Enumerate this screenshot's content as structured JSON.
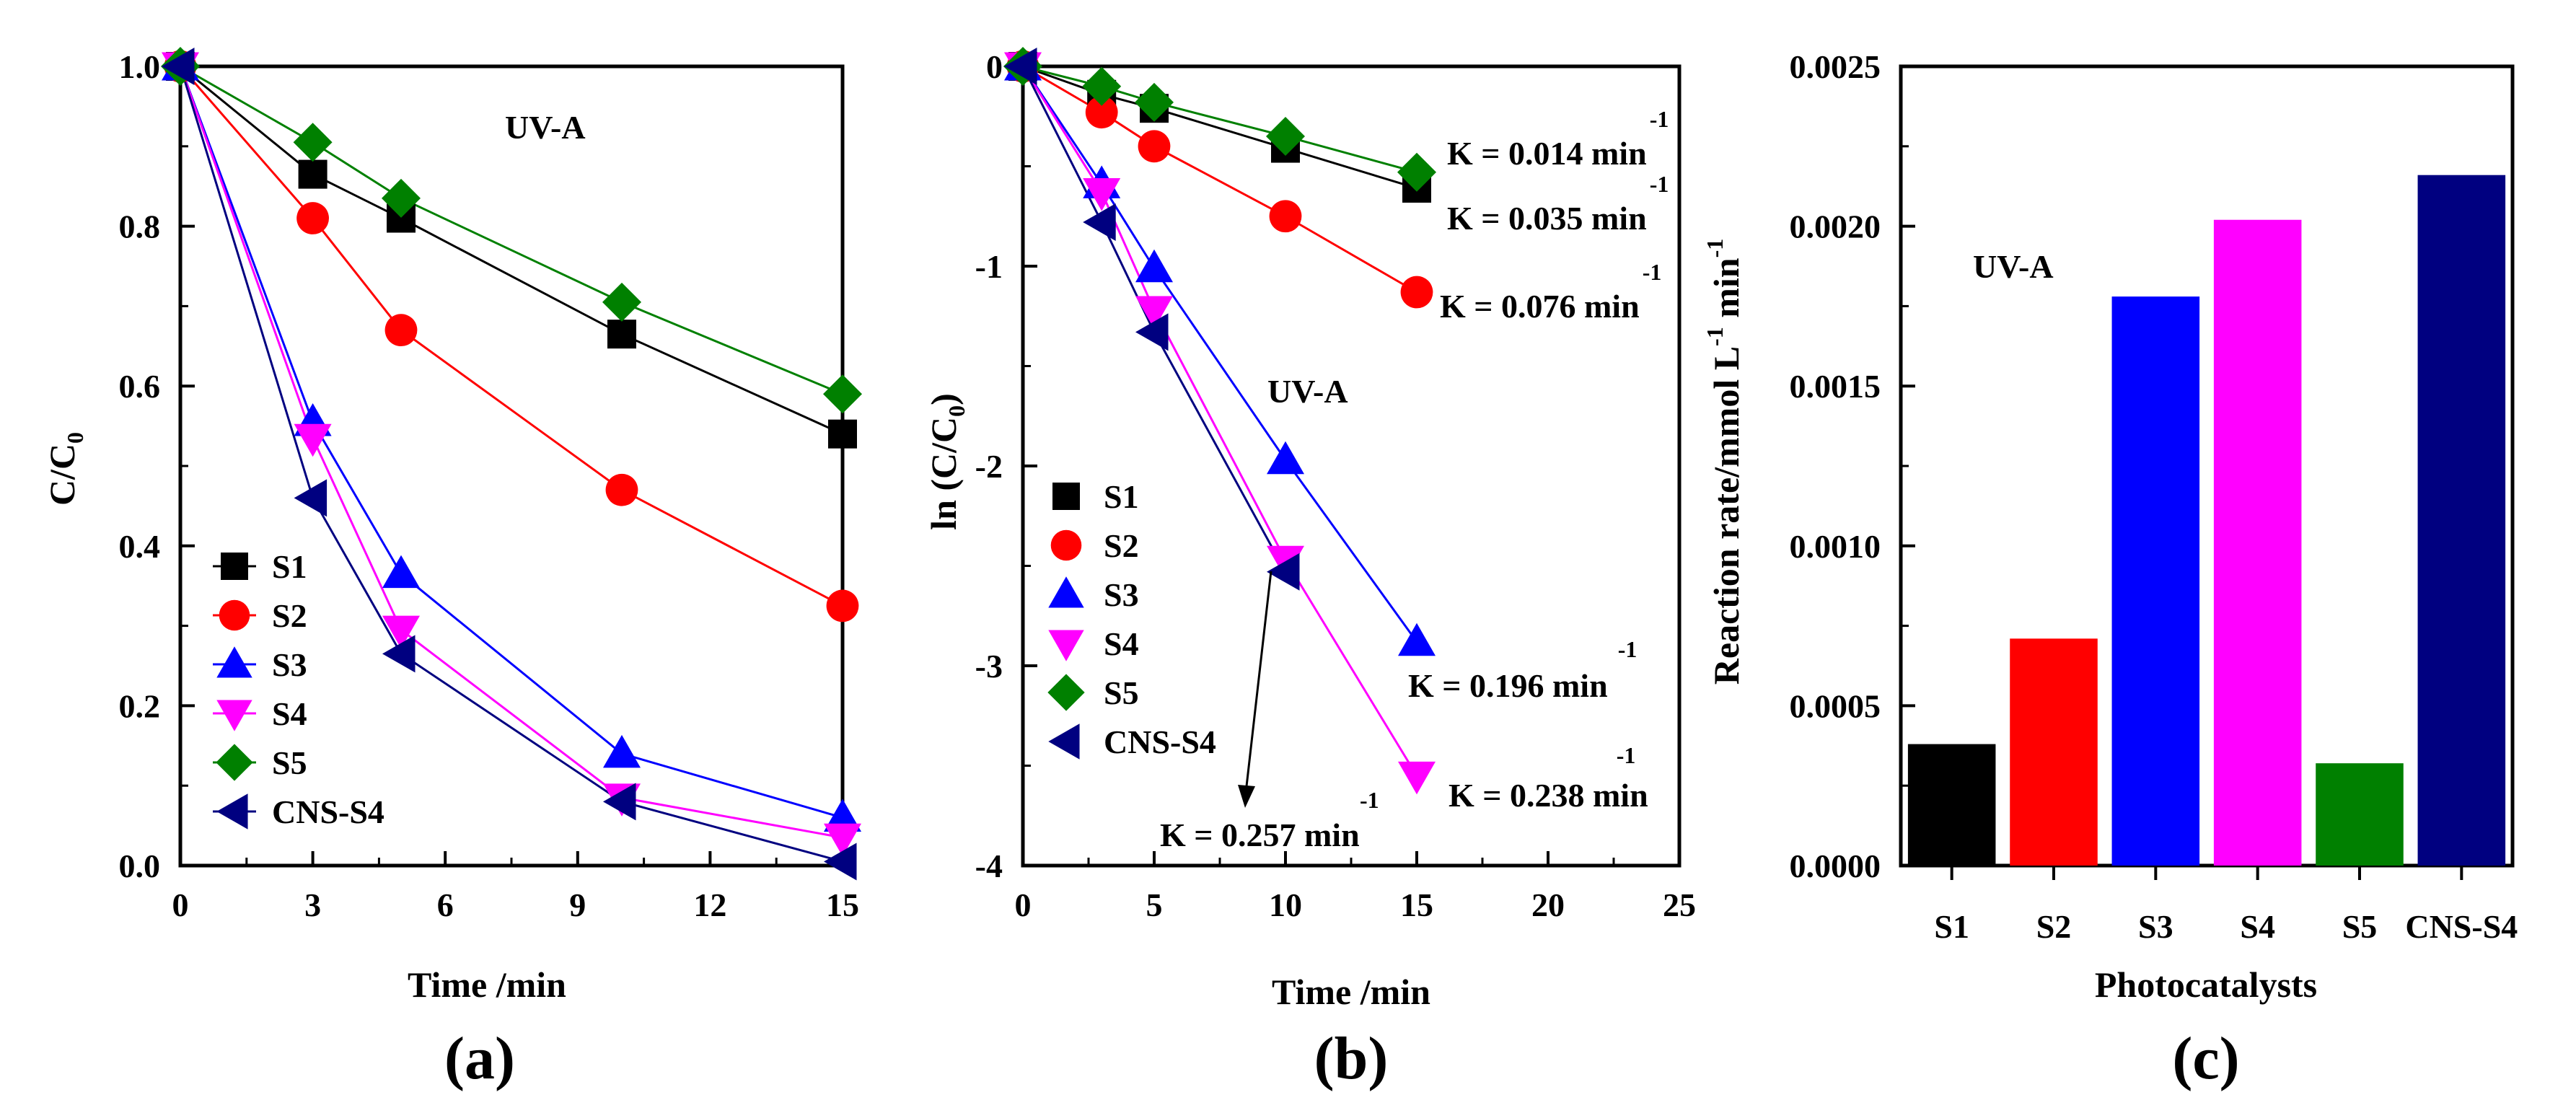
{
  "chart_data": [
    {
      "id": "a",
      "type": "line",
      "panel_label": "(a)",
      "xlabel": "Time /min",
      "ylabel": "C/C",
      "ylabel_sub": "0",
      "xlim": [
        0,
        15
      ],
      "ylim": [
        0,
        1.0
      ],
      "xticks": [
        0,
        3,
        6,
        9,
        12,
        15
      ],
      "yticks": [
        0.0,
        0.2,
        0.4,
        0.6,
        0.8,
        1.0
      ],
      "xtick_labels": [
        "0",
        "3",
        "6",
        "9",
        "12",
        "15"
      ],
      "ytick_labels": [
        "0.0",
        "0.2",
        "0.4",
        "0.6",
        "0.8",
        "1.0"
      ],
      "annotation": "UV-A",
      "legend": [
        "S1",
        "S2",
        "S3",
        "S4",
        "S5",
        "CNS-S4"
      ],
      "x": [
        0,
        3,
        5,
        10,
        15
      ],
      "series": [
        {
          "name": "S1",
          "color": "#000000",
          "marker": "square",
          "values": [
            1.0,
            0.865,
            0.81,
            0.665,
            0.54
          ]
        },
        {
          "name": "S2",
          "color": "#ff0000",
          "marker": "circle",
          "values": [
            1.0,
            0.81,
            0.67,
            0.47,
            0.325
          ]
        },
        {
          "name": "S3",
          "color": "#0000ff",
          "marker": "triangle-up",
          "values": [
            1.0,
            0.555,
            0.365,
            0.14,
            0.06
          ]
        },
        {
          "name": "S4",
          "color": "#ff00ff",
          "marker": "triangle-down",
          "values": [
            1.0,
            0.535,
            0.295,
            0.085,
            0.035
          ]
        },
        {
          "name": "S5",
          "color": "#008000",
          "marker": "diamond",
          "values": [
            1.0,
            0.905,
            0.835,
            0.705,
            0.59
          ]
        },
        {
          "name": "CNS-S4",
          "color": "#000080",
          "marker": "triangle-left",
          "values": [
            1.0,
            0.46,
            0.265,
            0.08,
            0.005
          ]
        }
      ]
    },
    {
      "id": "b",
      "type": "line",
      "panel_label": "(b)",
      "xlabel": "Time /min",
      "ylabel": "ln (C/C",
      "ylabel_sub": "0",
      "ylabel_end": ")",
      "xlim": [
        0,
        25
      ],
      "ylim": [
        -4,
        0
      ],
      "xticks": [
        0,
        5,
        10,
        15,
        20,
        25
      ],
      "yticks": [
        -4,
        -3,
        -2,
        -1,
        0
      ],
      "xtick_labels": [
        "0",
        "5",
        "10",
        "15",
        "20",
        "25"
      ],
      "ytick_labels": [
        "-4",
        "-3",
        "-2",
        "-1",
        "0"
      ],
      "annotation": "UV-A",
      "legend": [
        "S1",
        "S2",
        "S3",
        "S4",
        "S5",
        "CNS-S4"
      ],
      "x": [
        0,
        3,
        5,
        10,
        15
      ],
      "series": [
        {
          "name": "S1",
          "color": "#000000",
          "marker": "square",
          "values": [
            0,
            -0.14,
            -0.21,
            -0.41,
            -0.61
          ]
        },
        {
          "name": "S2",
          "color": "#ff0000",
          "marker": "circle",
          "values": [
            0,
            -0.23,
            -0.4,
            -0.75,
            -1.13
          ]
        },
        {
          "name": "S3",
          "color": "#0000ff",
          "marker": "triangle-up",
          "values": [
            0,
            -0.59,
            -1.01,
            -1.97,
            -2.88
          ]
        },
        {
          "name": "S4",
          "color": "#ff00ff",
          "marker": "triangle-down",
          "values": [
            0,
            -0.63,
            -1.22,
            -2.47,
            -3.55
          ]
        },
        {
          "name": "S5",
          "color": "#008000",
          "marker": "diamond",
          "values": [
            0,
            -0.1,
            -0.18,
            -0.35,
            -0.53
          ]
        },
        {
          "name": "CNS-S4",
          "color": "#000080",
          "marker": "triangle-left",
          "values": [
            0,
            -0.78,
            -1.33,
            -2.53,
            null
          ]
        }
      ],
      "rate_labels": [
        {
          "text": "K = 0.014 min",
          "sup": "-1"
        },
        {
          "text": "K = 0.035 min",
          "sup": "-1"
        },
        {
          "text": "K = 0.076 min",
          "sup": "-1"
        },
        {
          "text": "K = 0.196 min",
          "sup": "-1"
        },
        {
          "text": "K = 0.238 min",
          "sup": "-1"
        },
        {
          "text": "K = 0.257 min",
          "sup": "-1"
        }
      ]
    },
    {
      "id": "c",
      "type": "bar",
      "panel_label": "(c)",
      "xlabel": "Photocatalysts",
      "ylabel": "Reaction rate/mmol L",
      "ylabel_sup1": "-1",
      "ylabel_mid": " min",
      "ylabel_sup2": "-1",
      "ylim": [
        0,
        0.0025
      ],
      "yticks": [
        0,
        0.0005,
        0.001,
        0.0015,
        0.002,
        0.0025
      ],
      "ytick_labels": [
        "0.0000",
        "0.0005",
        "0.0010",
        "0.0015",
        "0.0020",
        "0.0025"
      ],
      "annotation": "UV-A",
      "categories": [
        "S1",
        "S2",
        "S3",
        "S4",
        "S5",
        "CNS-S4"
      ],
      "values": [
        0.00038,
        0.00071,
        0.00178,
        0.00202,
        0.00032,
        0.00216
      ],
      "colors": [
        "#000000",
        "#ff0000",
        "#0000ff",
        "#ff00ff",
        "#008000",
        "#000080"
      ]
    }
  ]
}
